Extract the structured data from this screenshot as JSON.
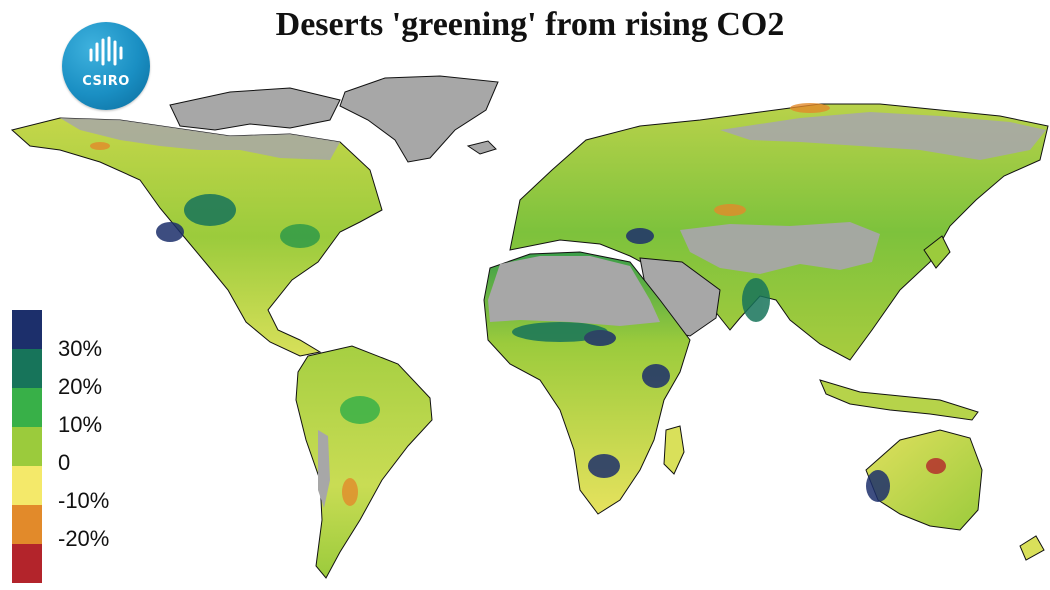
{
  "title": "Deserts 'greening' from rising CO2",
  "logo": {
    "text": "CSIRO",
    "icon": "csiro-logo-icon"
  },
  "legend": {
    "colors": [
      "#1c2f6b",
      "#17745a",
      "#38b048",
      "#9bcb3c",
      "#f4e96a",
      "#e28a2a",
      "#b3242b"
    ],
    "labels": [
      "30%",
      "20%",
      "10%",
      "0",
      "-10%",
      "-20%"
    ]
  },
  "map": {
    "subject": "world map of vegetation cover change",
    "colors": {
      "ocean": "#ffffff",
      "no_data": "#a7a7a7",
      "outline": "#111111"
    }
  }
}
